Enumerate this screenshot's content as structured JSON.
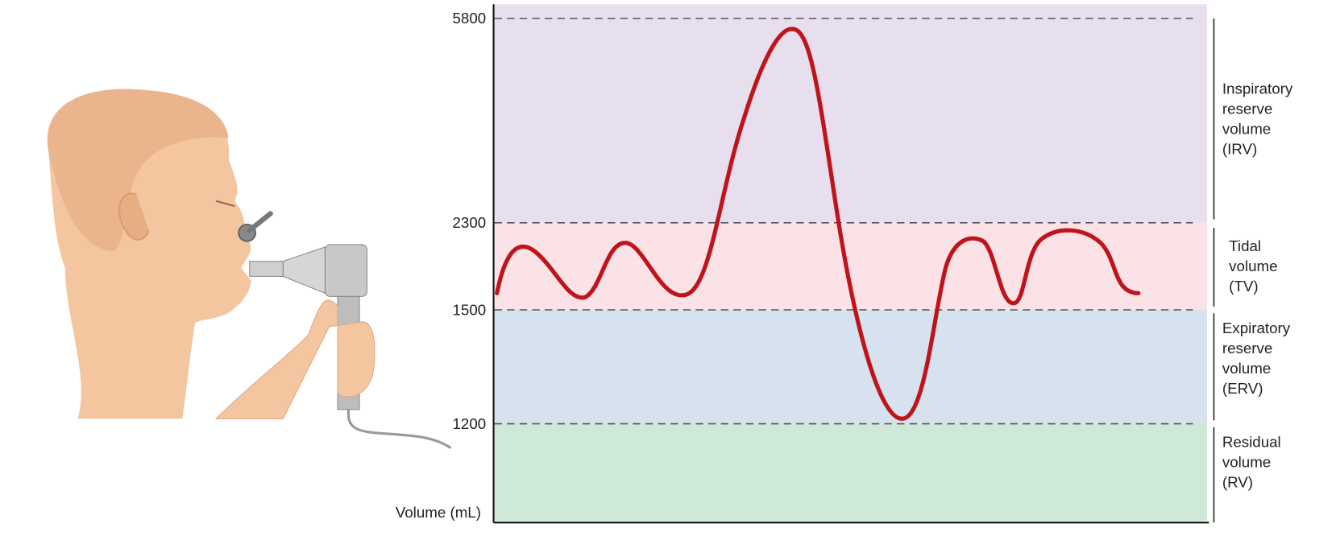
{
  "axis": {
    "label": "Volume (mL)",
    "ticks": [
      5800,
      2300,
      1500,
      1200
    ]
  },
  "zones": [
    {
      "label": [
        "Inspiratory",
        "reserve",
        "volume",
        "(IRV)"
      ]
    },
    {
      "label": [
        "Tidal",
        "volume",
        "(TV)"
      ]
    },
    {
      "label": [
        "Expiratory",
        "reserve",
        "volume",
        "(ERV)"
      ]
    },
    {
      "label": [
        "Residual",
        "volume",
        "(RV)"
      ]
    }
  ]
}
